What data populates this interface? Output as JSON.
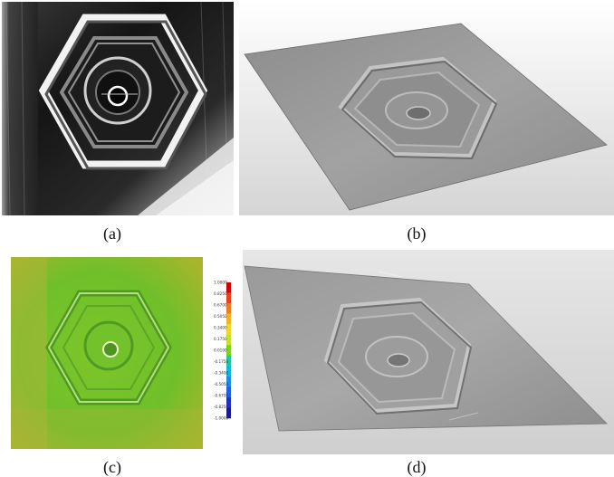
{
  "captions": {
    "a": "(a)",
    "b": "(b)",
    "c": "(c)",
    "d": "(d)"
  },
  "colorbar": {
    "ticks": [
      "1.0000",
      "0.8250",
      "0.6700",
      "0.5050",
      "0.3400",
      "0.1750",
      "0.0100",
      "-0.1750",
      "-0.3400",
      "-0.5050",
      "-0.6700",
      "-0.8250",
      "-1.0000"
    ],
    "colors": [
      "#d40000",
      "#e8401a",
      "#f07a1e",
      "#f5b126",
      "#f0d82a",
      "#c8e02a",
      "#7ed321",
      "#20c8a0",
      "#10b8e0",
      "#1a8ce8",
      "#2060e0",
      "#2030c0",
      "#1a1a90"
    ]
  },
  "colors": {
    "metal_dark": "#111111",
    "metal_light": "#e6e6e6",
    "surface_gray": "#9a9a9a",
    "scan_green": "#6fbf2a"
  }
}
